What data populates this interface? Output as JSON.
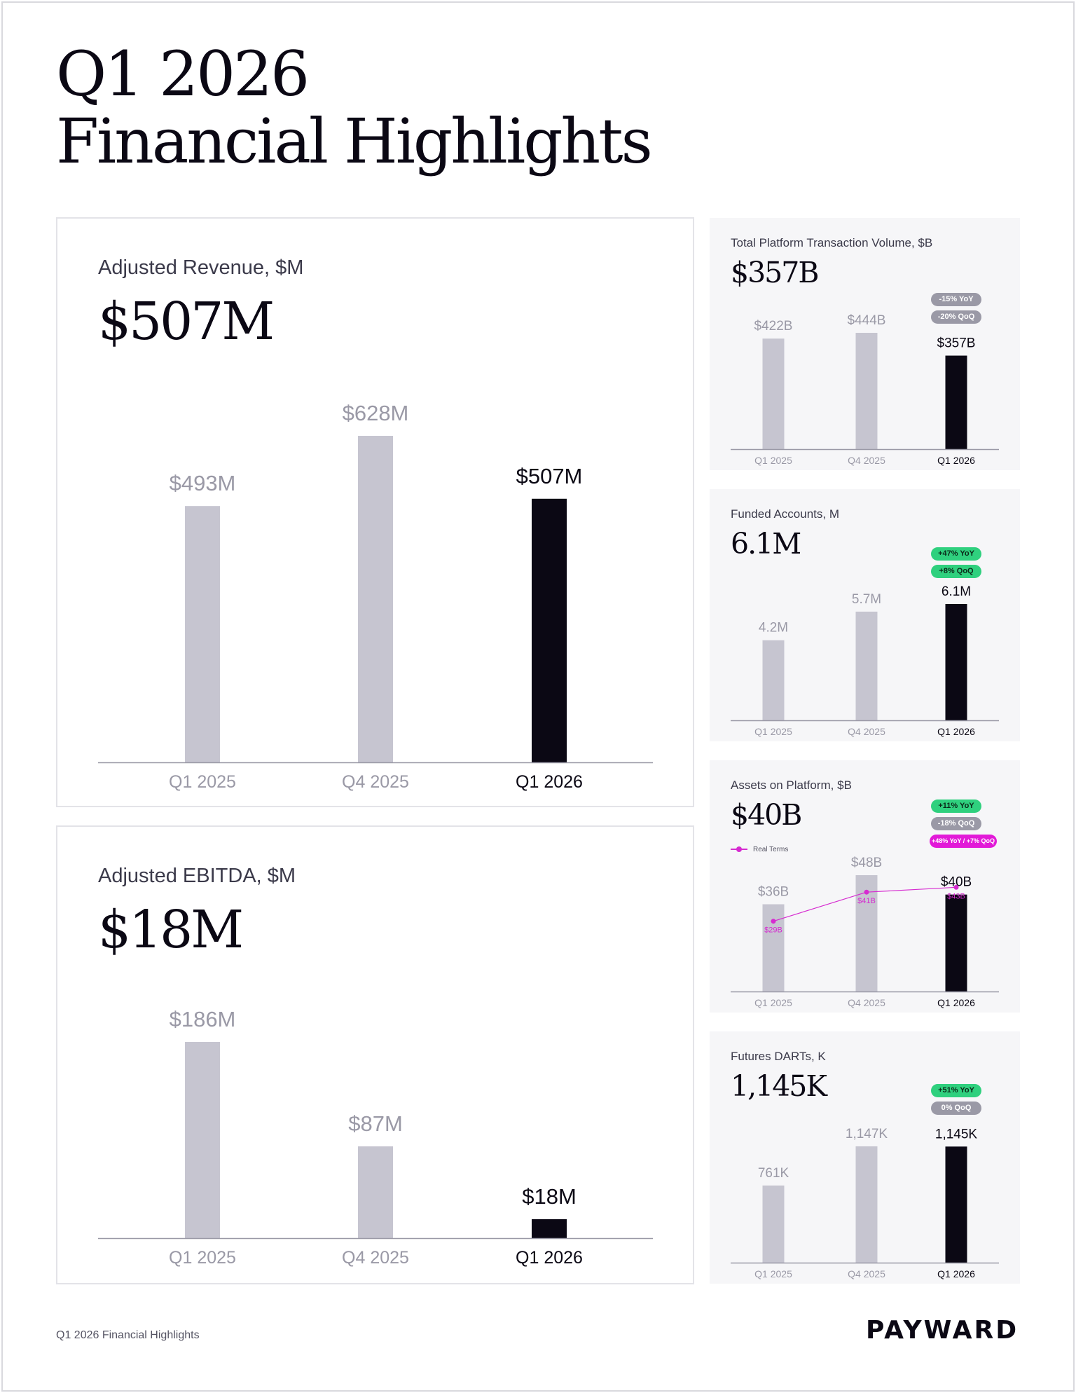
{
  "title": {
    "line1": "Q1 2026",
    "line2": "Financial Highlights"
  },
  "footer": {
    "caption": "Q1 2026 Financial Highlights",
    "brand": "PAYWARD"
  },
  "colors": {
    "past": "#c6c5d0",
    "current": "#0b0814",
    "past_label": "#9a99a6",
    "axis": "#9a99a6",
    "real_terms": "#d62bd0"
  },
  "chart_data": [
    {
      "type": "bar",
      "title": "Adjusted Revenue, $M",
      "headline": "$507M",
      "categories": [
        "Q1 2025",
        "Q4 2025",
        "Q1 2026"
      ],
      "values": [
        493,
        628,
        507
      ],
      "labels": [
        "$493M",
        "$628M",
        "$507M"
      ],
      "ylim": [
        0,
        628
      ]
    },
    {
      "type": "bar",
      "title": "Adjusted EBITDA, $M",
      "headline": "$18M",
      "categories": [
        "Q1 2025",
        "Q4 2025",
        "Q1 2026"
      ],
      "values": [
        186,
        87,
        18
      ],
      "labels": [
        "$186M",
        "$87M",
        "$18M"
      ],
      "ylim": [
        0,
        186
      ]
    },
    {
      "type": "bar",
      "title": "Total Platform Transaction Volume, $B",
      "headline": "$357B",
      "categories": [
        "Q1 2025",
        "Q4 2025",
        "Q1 2026"
      ],
      "values": [
        422,
        444,
        357
      ],
      "labels": [
        "$422B",
        "$444B",
        "$357B"
      ],
      "ylim": [
        0,
        444
      ],
      "badges": [
        {
          "text": "-15% YoY",
          "color": "gray"
        },
        {
          "text": "-20% QoQ",
          "color": "gray"
        }
      ]
    },
    {
      "type": "bar",
      "title": "Funded Accounts, M",
      "headline": "6.1M",
      "categories": [
        "Q1 2025",
        "Q4 2025",
        "Q1 2026"
      ],
      "values": [
        4.2,
        5.7,
        6.1
      ],
      "labels": [
        "4.2M",
        "5.7M",
        "6.1M"
      ],
      "ylim": [
        0,
        6.1
      ],
      "badges": [
        {
          "text": "+47% YoY",
          "color": "green"
        },
        {
          "text": "+8% QoQ",
          "color": "green"
        }
      ]
    },
    {
      "type": "bar",
      "title": "Assets on Platform, $B",
      "headline": "$40B",
      "categories": [
        "Q1 2025",
        "Q4 2025",
        "Q1 2026"
      ],
      "values": [
        36,
        48,
        40
      ],
      "labels": [
        "$36B",
        "$48B",
        "$40B"
      ],
      "ylim": [
        0,
        48
      ],
      "badges": [
        {
          "text": "+11% YoY",
          "color": "green"
        },
        {
          "text": "-18% QoQ",
          "color": "gray"
        },
        {
          "text": "+48% YoY / +7% QoQ",
          "color": "magenta"
        }
      ],
      "legend": "Real Terms",
      "overlay": {
        "name": "Real Terms",
        "values": [
          29,
          41,
          43
        ],
        "labels": [
          "$29B",
          "$41B",
          "$43B"
        ]
      }
    },
    {
      "type": "bar",
      "title": "Futures DARTs, K",
      "headline": "1,145K",
      "categories": [
        "Q1 2025",
        "Q4 2025",
        "Q1 2026"
      ],
      "values": [
        761,
        1147,
        1145
      ],
      "labels": [
        "761K",
        "1,147K",
        "1,145K"
      ],
      "ylim": [
        0,
        1147
      ],
      "badges": [
        {
          "text": "+51% YoY",
          "color": "green"
        },
        {
          "text": "0% QoQ",
          "color": "gray"
        }
      ]
    }
  ]
}
